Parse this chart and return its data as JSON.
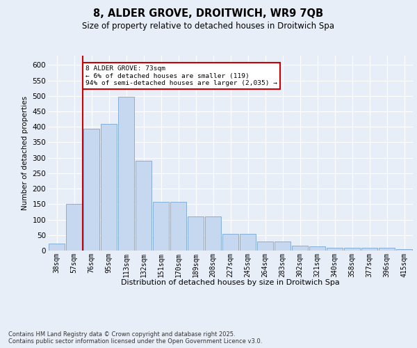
{
  "title_line1": "8, ALDER GROVE, DROITWICH, WR9 7QB",
  "title_line2": "Size of property relative to detached houses in Droitwich Spa",
  "xlabel": "Distribution of detached houses by size in Droitwich Spa",
  "ylabel": "Number of detached properties",
  "footnote": "Contains HM Land Registry data © Crown copyright and database right 2025.\nContains public sector information licensed under the Open Government Licence v3.0.",
  "annotation_title": "8 ALDER GROVE: 73sqm",
  "annotation_line2": "← 6% of detached houses are smaller (119)",
  "annotation_line3": "94% of semi-detached houses are larger (2,035) →",
  "bar_heights": [
    22,
    150,
    393,
    410,
    498,
    291,
    158,
    158,
    110,
    110,
    55,
    55,
    30,
    30,
    15,
    13,
    10,
    8,
    10,
    10,
    5
  ],
  "bin_labels": [
    "38sqm",
    "57sqm",
    "76sqm",
    "95sqm",
    "113sqm",
    "132sqm",
    "151sqm",
    "170sqm",
    "189sqm",
    "208sqm",
    "227sqm",
    "245sqm",
    "264sqm",
    "283sqm",
    "302sqm",
    "321sqm",
    "340sqm",
    "358sqm",
    "377sqm",
    "396sqm",
    "415sqm"
  ],
  "bar_color": "#c5d8f0",
  "bar_edge_color": "#6699cc",
  "redline_color": "#cc0000",
  "ylim": [
    0,
    630
  ],
  "yticks": [
    0,
    50,
    100,
    150,
    200,
    250,
    300,
    350,
    400,
    450,
    500,
    550,
    600
  ],
  "background_color": "#e8eef8",
  "grid_color": "#ffffff",
  "annotation_box_facecolor": "#ffffff",
  "annotation_box_edgecolor": "#cc0000",
  "redline_bin_index": 2
}
